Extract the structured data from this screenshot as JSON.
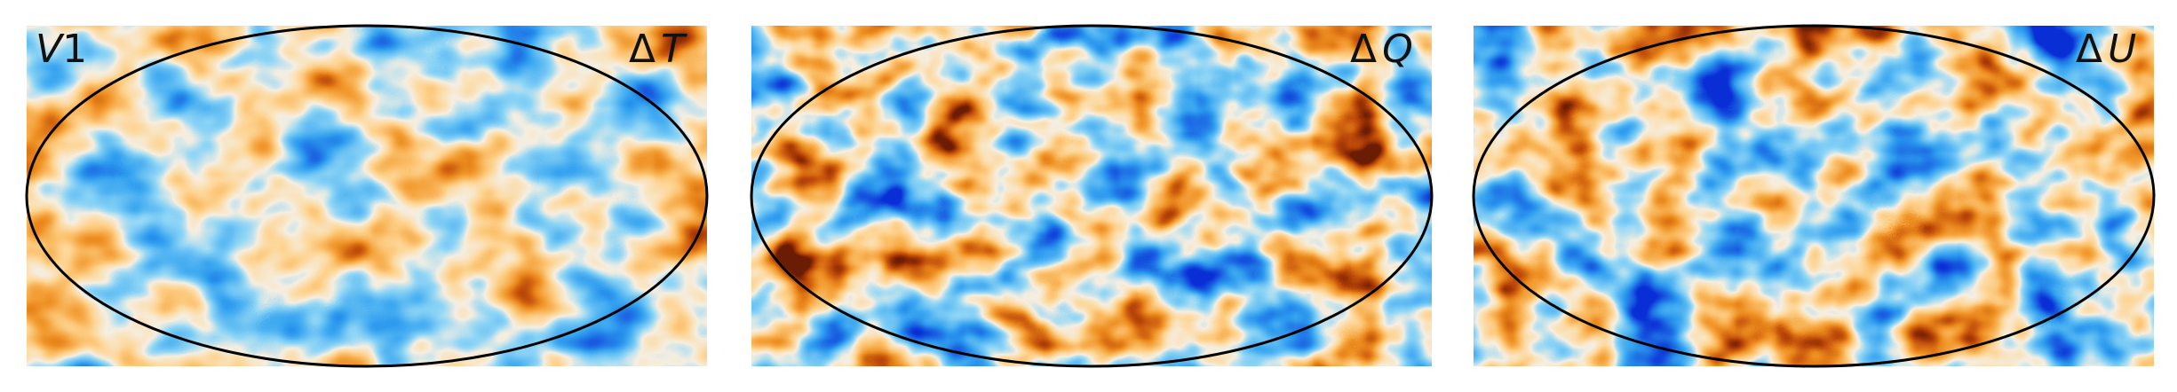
{
  "figure": {
    "band_label": {
      "name": "V",
      "number": "1"
    },
    "panels": [
      {
        "id": "dT",
        "symbol": "Δ",
        "variable": "T"
      },
      {
        "id": "dQ",
        "symbol": "Δ",
        "variable": "Q"
      },
      {
        "id": "dU",
        "symbol": "Δ",
        "variable": "U"
      }
    ],
    "projection": "mollweide",
    "colormap": {
      "negative": "#0a2fd6",
      "negative_mid": "#2ea0f0",
      "negative_light": "#8fd6f6",
      "neutral": "#f6efe2",
      "positive_light": "#ffd28a",
      "positive_mid": "#f0901e",
      "positive": "#b63f06",
      "positive_extreme": "#6a1c04"
    },
    "outline_color": "#000000"
  }
}
